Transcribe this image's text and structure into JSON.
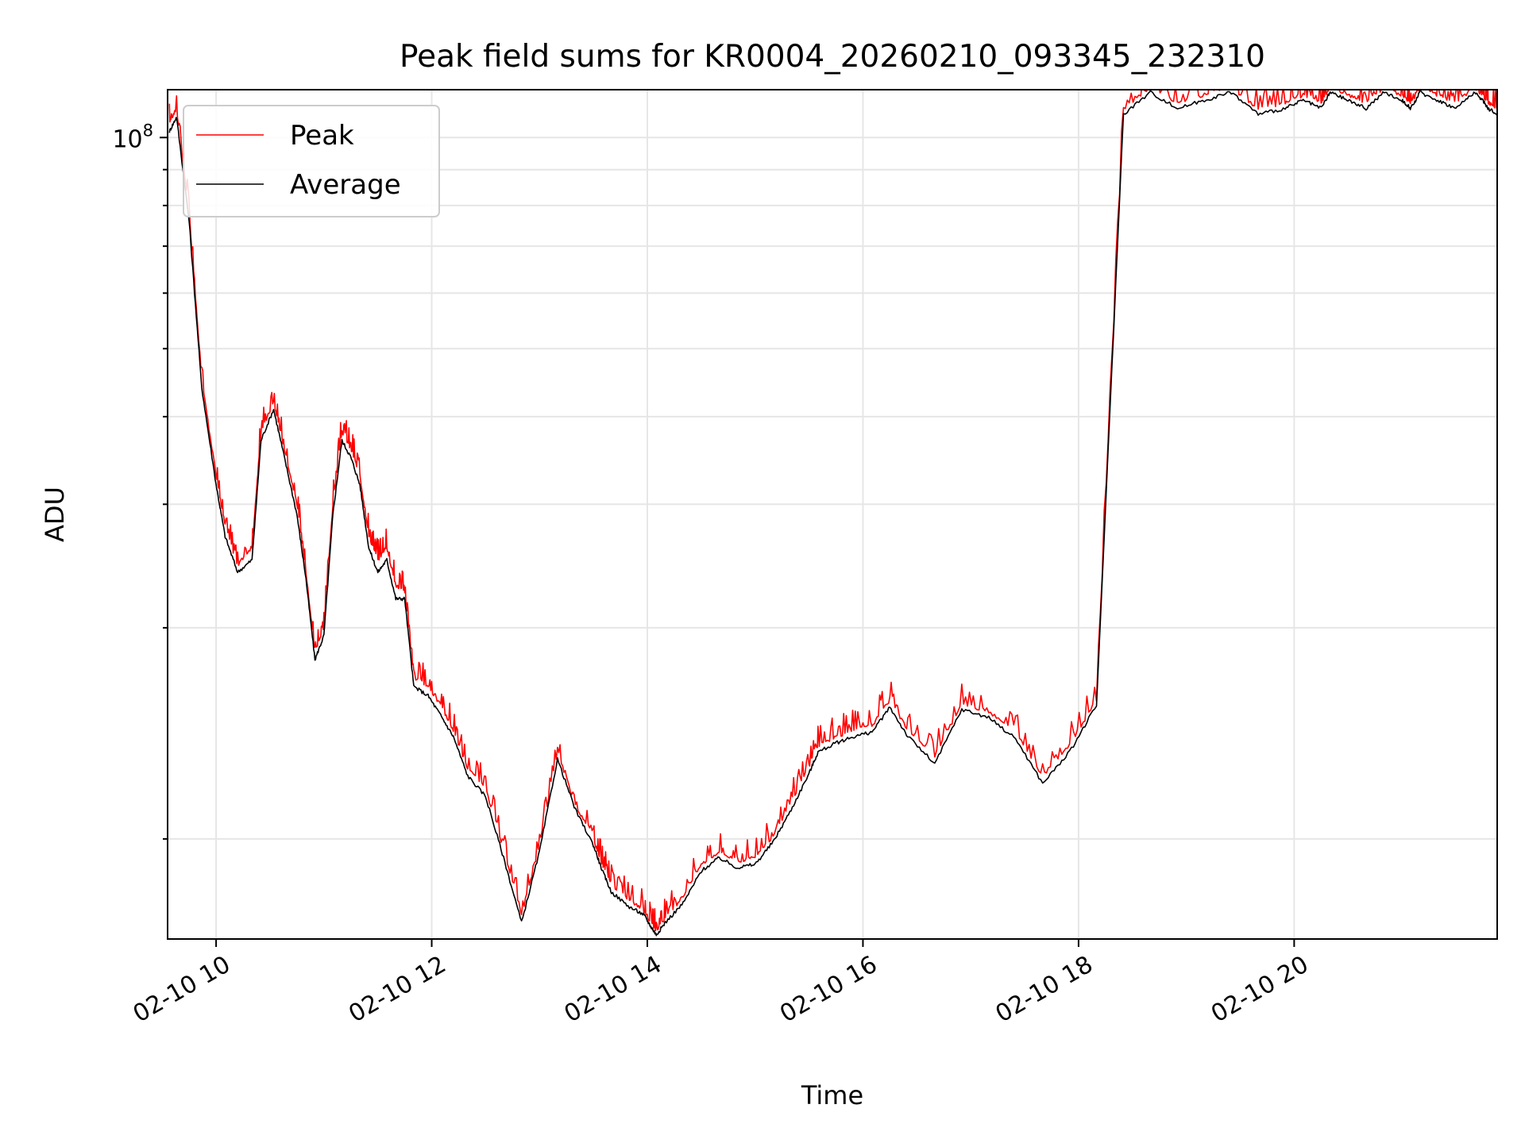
{
  "chart_data": {
    "type": "line",
    "title": "Peak field sums for KR0004_20260210_093345_232310",
    "xlabel": "Time",
    "ylabel": "ADU",
    "yscale": "log",
    "grid": true,
    "legend_position": "upper-left",
    "xlim": [
      "2026-02-10 09:33",
      "2026-02-10 21:53"
    ],
    "ylim": [
      7200000,
      117000000
    ],
    "x_ticks": [
      "02-10 10",
      "02-10 12",
      "02-10 14",
      "02-10 16",
      "02-10 18",
      "02-10 20"
    ],
    "y_ticks": [
      "10^8"
    ],
    "x": [
      "09:34",
      "09:38",
      "09:45",
      "09:52",
      "10:00",
      "10:05",
      "10:12",
      "10:20",
      "10:25",
      "10:32",
      "10:38",
      "10:45",
      "10:50",
      "10:55",
      "11:00",
      "11:05",
      "11:10",
      "11:15",
      "11:20",
      "11:25",
      "11:30",
      "11:35",
      "11:40",
      "11:45",
      "11:50",
      "11:58",
      "12:05",
      "12:12",
      "12:20",
      "12:30",
      "12:40",
      "12:50",
      "13:00",
      "13:10",
      "13:20",
      "13:30",
      "13:35",
      "13:40",
      "13:50",
      "13:58",
      "14:02",
      "14:05",
      "14:10",
      "14:20",
      "14:30",
      "14:40",
      "14:50",
      "15:00",
      "15:10",
      "15:20",
      "15:30",
      "15:35",
      "15:45",
      "15:55",
      "16:05",
      "16:15",
      "16:25",
      "16:40",
      "16:55",
      "17:10",
      "17:25",
      "17:40",
      "17:55",
      "18:10",
      "18:25",
      "18:40",
      "18:55",
      "19:10",
      "19:25",
      "19:40",
      "19:55",
      "20:05",
      "20:15",
      "20:20",
      "20:30",
      "20:40",
      "20:50",
      "21:00",
      "21:05",
      "21:10",
      "21:20",
      "21:30",
      "21:40",
      "21:45",
      "21:48",
      "21:53"
    ],
    "series": [
      {
        "name": "Peak",
        "color": "#ff0000",
        "values": [
          105,
          110,
          78,
          45,
          33,
          28,
          24.5,
          26,
          38,
          42,
          36,
          30,
          24,
          18.5,
          20,
          30,
          38,
          36,
          33,
          27,
          25,
          26,
          23,
          22.5,
          17,
          16.5,
          15.5,
          14.3,
          12.6,
          11.8,
          9.6,
          7.8,
          9.8,
          13.3,
          11.2,
          10,
          9.2,
          8.6,
          8.2,
          7.9,
          7.6,
          7.4,
          7.7,
          8.3,
          9.2,
          9.6,
          9.3,
          9.4,
          10.1,
          11.3,
          12.7,
          13.6,
          14,
          14.3,
          14.5,
          15.8,
          14.3,
          13.1,
          15.6,
          15.2,
          14.2,
          12.3,
          13.6,
          15.8,
          110,
          118,
          112,
          115,
          118,
          110,
          112,
          115,
          112,
          118,
          115,
          112,
          118,
          115,
          112,
          118,
          115,
          112,
          118,
          115,
          112,
          110
        ]
      },
      {
        "name": "Average",
        "color": "#000000",
        "values": [
          102,
          107,
          76,
          44,
          32,
          27,
          24,
          25,
          37,
          41,
          35,
          29,
          23.5,
          18,
          19.5,
          29,
          37,
          35,
          32,
          26,
          24,
          25,
          22,
          22,
          16.5,
          16,
          15,
          14,
          12.3,
          11.5,
          9.4,
          7.6,
          9.6,
          13,
          11,
          9.8,
          9,
          8.4,
          8,
          7.8,
          7.5,
          7.3,
          7.6,
          8.1,
          9,
          9.4,
          9.1,
          9.2,
          9.9,
          11,
          12.4,
          13.3,
          13.7,
          14,
          14.2,
          15.4,
          14,
          12.8,
          15.3,
          14.9,
          13.9,
          12,
          13.3,
          15.5,
          108,
          116,
          110,
          113,
          116,
          108,
          110,
          113,
          110,
          116,
          113,
          110,
          116,
          113,
          110,
          116,
          113,
          110,
          116,
          113,
          110,
          108
        ]
      }
    ]
  }
}
